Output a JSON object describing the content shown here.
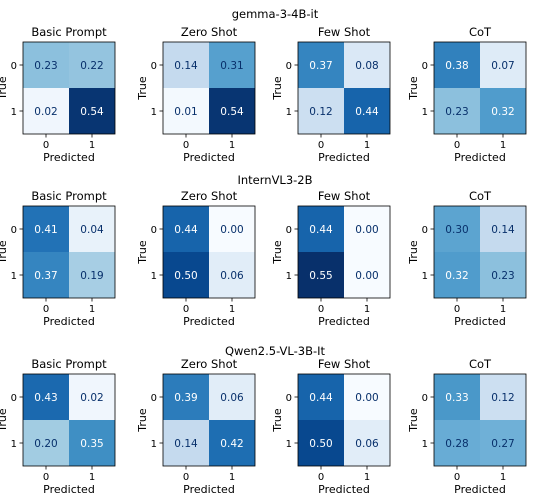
{
  "chart_data": {
    "type": "heatmap",
    "colormap": "Blues",
    "x_tick_labels": [
      "0",
      "1"
    ],
    "y_tick_labels": [
      "0",
      "1"
    ],
    "xlabel": "Predicted",
    "ylabel": "True",
    "groups": [
      {
        "title": "gemma-3-4B-it",
        "panels": [
          {
            "title": "Basic Prompt",
            "matrix": [
              [
                0.23,
                0.22
              ],
              [
                0.02,
                0.54
              ]
            ]
          },
          {
            "title": "Zero Shot",
            "matrix": [
              [
                0.14,
                0.31
              ],
              [
                0.01,
                0.54
              ]
            ]
          },
          {
            "title": "Few Shot",
            "matrix": [
              [
                0.37,
                0.08
              ],
              [
                0.12,
                0.44
              ]
            ]
          },
          {
            "title": "CoT",
            "matrix": [
              [
                0.38,
                0.07
              ],
              [
                0.23,
                0.32
              ]
            ]
          }
        ]
      },
      {
        "title": "InternVL3-2B",
        "panels": [
          {
            "title": "Basic Prompt",
            "matrix": [
              [
                0.41,
                0.04
              ],
              [
                0.37,
                0.19
              ]
            ]
          },
          {
            "title": "Zero Shot",
            "matrix": [
              [
                0.44,
                0.0
              ],
              [
                0.5,
                0.06
              ]
            ]
          },
          {
            "title": "Few Shot",
            "matrix": [
              [
                0.44,
                0.0
              ],
              [
                0.55,
                0.0
              ]
            ]
          },
          {
            "title": "CoT",
            "matrix": [
              [
                0.3,
                0.14
              ],
              [
                0.32,
                0.23
              ]
            ]
          }
        ]
      },
      {
        "title": "Qwen2.5-VL-3B-It",
        "panels": [
          {
            "title": "Basic Prompt",
            "matrix": [
              [
                0.43,
                0.02
              ],
              [
                0.2,
                0.35
              ]
            ]
          },
          {
            "title": "Zero Shot",
            "matrix": [
              [
                0.39,
                0.06
              ],
              [
                0.14,
                0.42
              ]
            ]
          },
          {
            "title": "Few Shot",
            "matrix": [
              [
                0.44,
                0.0
              ],
              [
                0.5,
                0.06
              ]
            ]
          },
          {
            "title": "CoT",
            "matrix": [
              [
                0.33,
                0.12
              ],
              [
                0.28,
                0.27
              ]
            ]
          }
        ]
      }
    ]
  }
}
